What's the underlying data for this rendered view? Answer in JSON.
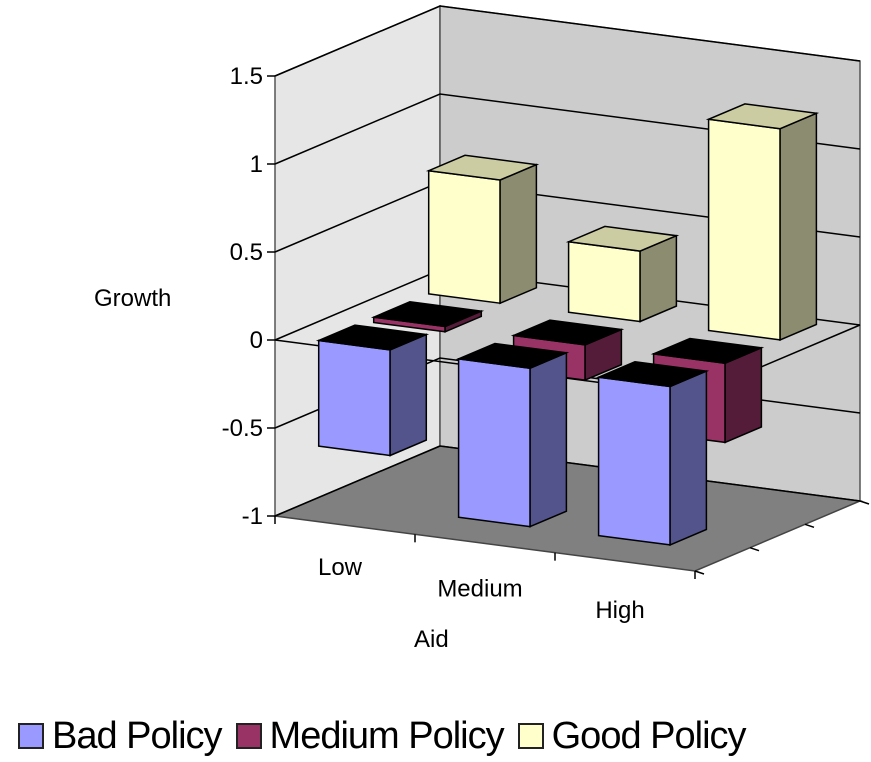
{
  "chart_data": {
    "type": "bar",
    "subtype": "3d-clustered-depth",
    "title": "",
    "xlabel": "Aid",
    "ylabel": "Growth",
    "ylim": [
      -1,
      1.5
    ],
    "yticks": [
      "1.5",
      "1",
      "0.5",
      "0",
      "-0.5",
      "-1"
    ],
    "yticks_values": [
      1.5,
      1,
      0.5,
      0,
      -0.5,
      -1
    ],
    "categories": [
      "Low",
      "Medium",
      "High"
    ],
    "series": [
      {
        "name": "Bad Policy",
        "values": [
          -0.6,
          -0.9,
          -0.9
        ],
        "color": "#9999ff"
      },
      {
        "name": "Medium Policy",
        "values": [
          -0.03,
          -0.2,
          -0.45
        ],
        "color": "#993366"
      },
      {
        "name": "Good Policy",
        "values": [
          0.7,
          0.4,
          1.2
        ],
        "color": "#ffffcc"
      }
    ],
    "legend_position": "bottom",
    "grid": true
  }
}
